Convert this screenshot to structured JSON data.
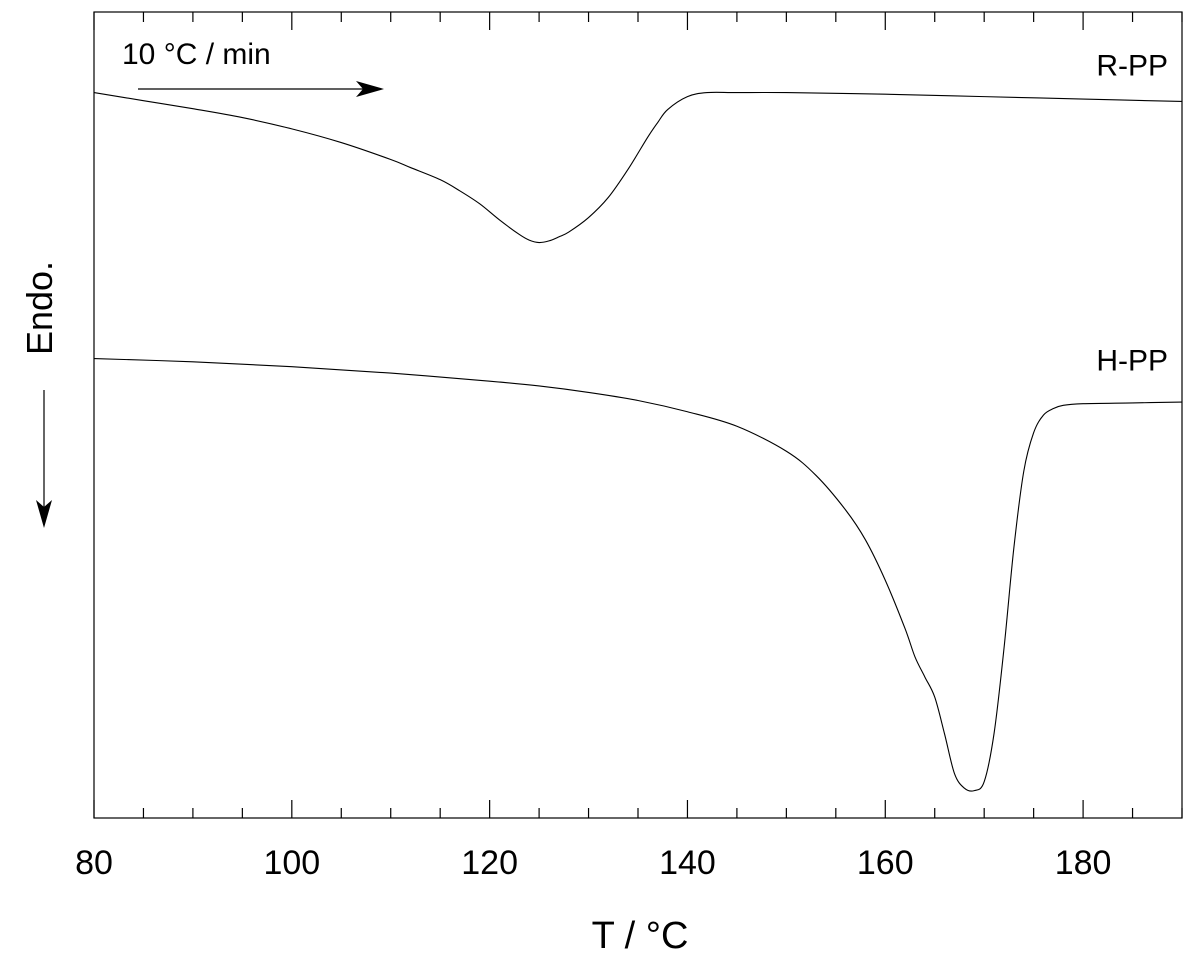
{
  "chart_data": {
    "type": "line",
    "title": "",
    "xlabel": "T / °C",
    "ylabel": "Endo.",
    "xlim": [
      80,
      190
    ],
    "xticks": [
      "80",
      "100",
      "120",
      "140",
      "160",
      "180"
    ],
    "xtick_values": [
      80,
      100,
      120,
      140,
      160,
      180
    ],
    "yticks": [],
    "y_axis_numbers_shown": false,
    "ylim": [
      -9.0,
      1.0
    ],
    "grid": false,
    "rate_annotation": "10 °C / min",
    "series": [
      {
        "name": "R-PP",
        "x": [
          80,
          85,
          90,
          95,
          100,
          105,
          110,
          112,
          115,
          117,
          119,
          121,
          123,
          124,
          125,
          126,
          127,
          128,
          130,
          132,
          134,
          136,
          137,
          138,
          140,
          142,
          145,
          150,
          160,
          170,
          180,
          190
        ],
        "y": [
          0.0,
          -0.1,
          -0.2,
          -0.31,
          -0.45,
          -0.62,
          -0.83,
          -0.93,
          -1.08,
          -1.22,
          -1.38,
          -1.58,
          -1.76,
          -1.83,
          -1.86,
          -1.84,
          -1.79,
          -1.73,
          -1.55,
          -1.3,
          -0.95,
          -0.55,
          -0.37,
          -0.21,
          -0.05,
          0.0,
          0.0,
          0.0,
          -0.02,
          -0.05,
          -0.08,
          -0.11
        ]
      },
      {
        "name": "H-PP",
        "x": [
          80,
          90,
          100,
          110,
          120,
          125,
          130,
          135,
          140,
          145,
          150,
          153,
          156,
          158,
          160,
          162,
          163,
          164,
          165,
          166,
          167,
          168,
          169,
          170,
          171,
          172,
          173,
          174,
          175,
          176,
          177,
          178,
          180,
          185,
          190
        ],
        "y": [
          -3.3,
          -3.34,
          -3.4,
          -3.48,
          -3.58,
          -3.64,
          -3.72,
          -3.82,
          -3.96,
          -4.14,
          -4.45,
          -4.75,
          -5.18,
          -5.55,
          -6.05,
          -6.65,
          -7.0,
          -7.25,
          -7.5,
          -7.96,
          -8.45,
          -8.63,
          -8.66,
          -8.55,
          -7.95,
          -6.9,
          -5.65,
          -4.7,
          -4.22,
          -4.0,
          -3.92,
          -3.88,
          -3.86,
          -3.85,
          -3.84
        ]
      }
    ]
  }
}
